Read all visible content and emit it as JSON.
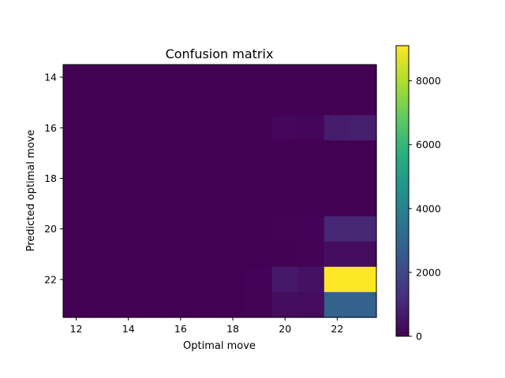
{
  "chart_data": {
    "type": "heatmap",
    "title": "Confusion matrix",
    "xlabel": "Optimal move",
    "ylabel": "Predicted optimal move",
    "colormap": "viridis",
    "x_values": [
      12,
      13,
      14,
      15,
      16,
      17,
      18,
      19,
      20,
      21,
      22,
      23
    ],
    "y_values": [
      14,
      15,
      16,
      17,
      18,
      19,
      20,
      21,
      22,
      23
    ],
    "x_ticks": [
      "12",
      "14",
      "16",
      "18",
      "20",
      "22"
    ],
    "y_ticks": [
      "14",
      "16",
      "18",
      "20",
      "22"
    ],
    "color_range": [
      0,
      9100
    ],
    "colorbar_ticks": [
      "0",
      "2000",
      "4000",
      "6000",
      "8000"
    ],
    "cells": [
      [
        0,
        0,
        0,
        0,
        0,
        0,
        0,
        0,
        0,
        0,
        0,
        0
      ],
      [
        0,
        0,
        0,
        0,
        0,
        0,
        0,
        0,
        0,
        0,
        0,
        0
      ],
      [
        0,
        0,
        0,
        0,
        0,
        0,
        0,
        0,
        150,
        120,
        700,
        800
      ],
      [
        0,
        0,
        0,
        0,
        0,
        0,
        0,
        0,
        0,
        0,
        0,
        0
      ],
      [
        0,
        0,
        0,
        0,
        0,
        0,
        0,
        0,
        0,
        0,
        0,
        0
      ],
      [
        0,
        0,
        0,
        0,
        0,
        0,
        0,
        0,
        0,
        0,
        0,
        0
      ],
      [
        0,
        0,
        0,
        0,
        0,
        0,
        0,
        0,
        40,
        60,
        1000,
        1000
      ],
      [
        0,
        0,
        0,
        0,
        0,
        0,
        0,
        0,
        30,
        40,
        300,
        300
      ],
      [
        0,
        0,
        0,
        0,
        0,
        0,
        0,
        60,
        600,
        450,
        9100,
        9100
      ],
      [
        0,
        0,
        0,
        0,
        0,
        0,
        0,
        40,
        300,
        250,
        2850,
        2850
      ]
    ]
  }
}
